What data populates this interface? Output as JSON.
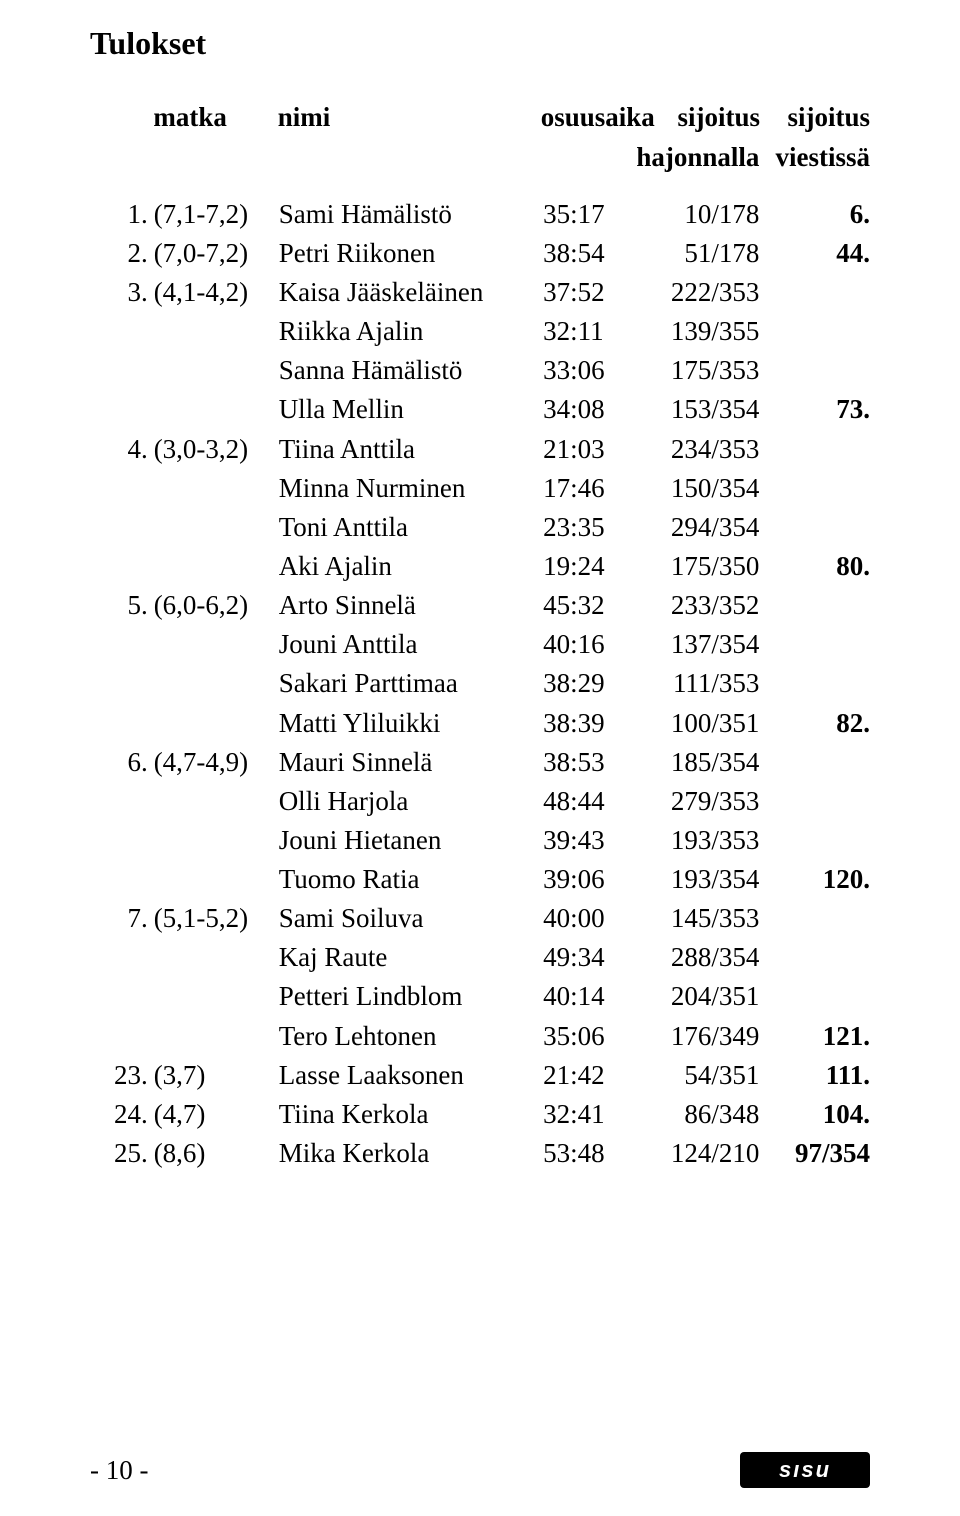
{
  "title": "Tulokset",
  "headers": {
    "matka": "matka",
    "nimi": "nimi",
    "osuusaika": "osuusaika",
    "sijoitus": "sijoitus",
    "hajonnalla": "hajonnalla",
    "sijoitus2": "sijoitus",
    "viestissa": "viestissä"
  },
  "rows": [
    {
      "leg": "1.",
      "dist": "(7,1-7,2)",
      "name": "Sami Hämälistö",
      "time": "35:17",
      "place": "10/178",
      "relay": "6."
    },
    {
      "leg": "2.",
      "dist": "(7,0-7,2)",
      "name": "Petri Riikonen",
      "time": "38:54",
      "place": "51/178",
      "relay": "44."
    },
    {
      "leg": "3.",
      "dist": "(4,1-4,2)",
      "name": "Kaisa Jääskeläinen",
      "time": "37:52",
      "place": "222/353",
      "relay": ""
    },
    {
      "leg": "",
      "dist": "",
      "name": "Riikka Ajalin",
      "time": "32:11",
      "place": "139/355",
      "relay": ""
    },
    {
      "leg": "",
      "dist": "",
      "name": "Sanna Hämälistö",
      "time": "33:06",
      "place": "175/353",
      "relay": ""
    },
    {
      "leg": "",
      "dist": "",
      "name": "Ulla Mellin",
      "time": "34:08",
      "place": "153/354",
      "relay": "73."
    },
    {
      "leg": "4.",
      "dist": "(3,0-3,2)",
      "name": "Tiina Anttila",
      "time": "21:03",
      "place": "234/353",
      "relay": ""
    },
    {
      "leg": "",
      "dist": "",
      "name": "Minna Nurminen",
      "time": "17:46",
      "place": "150/354",
      "relay": ""
    },
    {
      "leg": "",
      "dist": "",
      "name": "Toni Anttila",
      "time": "23:35",
      "place": "294/354",
      "relay": ""
    },
    {
      "leg": "",
      "dist": "",
      "name": "Aki Ajalin",
      "time": "19:24",
      "place": "175/350",
      "relay": "80."
    },
    {
      "leg": "5.",
      "dist": "(6,0-6,2)",
      "name": "Arto Sinnelä",
      "time": "45:32",
      "place": "233/352",
      "relay": ""
    },
    {
      "leg": "",
      "dist": "",
      "name": "Jouni Anttila",
      "time": "40:16",
      "place": "137/354",
      "relay": ""
    },
    {
      "leg": "",
      "dist": "",
      "name": "Sakari Parttimaa",
      "time": "38:29",
      "place": "111/353",
      "relay": ""
    },
    {
      "leg": "",
      "dist": "",
      "name": "Matti Yliluikki",
      "time": "38:39",
      "place": "100/351",
      "relay": "82."
    },
    {
      "leg": "6.",
      "dist": "(4,7-4,9)",
      "name": "Mauri Sinnelä",
      "time": "38:53",
      "place": "185/354",
      "relay": ""
    },
    {
      "leg": "",
      "dist": "",
      "name": "Olli Harjola",
      "time": "48:44",
      "place": "279/353",
      "relay": ""
    },
    {
      "leg": "",
      "dist": "",
      "name": "Jouni Hietanen",
      "time": "39:43",
      "place": "193/353",
      "relay": ""
    },
    {
      "leg": "",
      "dist": "",
      "name": "Tuomo Ratia",
      "time": "39:06",
      "place": "193/354",
      "relay": "120."
    },
    {
      "leg": "7.",
      "dist": "(5,1-5,2)",
      "name": "Sami Soiluva",
      "time": "40:00",
      "place": "145/353",
      "relay": ""
    },
    {
      "leg": "",
      "dist": "",
      "name": "Kaj Raute",
      "time": "49:34",
      "place": "288/354",
      "relay": ""
    },
    {
      "leg": "",
      "dist": "",
      "name": "Petteri Lindblom",
      "time": "40:14",
      "place": "204/351",
      "relay": ""
    },
    {
      "leg": "",
      "dist": "",
      "name": "Tero Lehtonen",
      "time": "35:06",
      "place": "176/349",
      "relay": "121."
    },
    {
      "leg": "23.",
      "dist": "(3,7)",
      "name": "Lasse Laaksonen",
      "time": "21:42",
      "place": "54/351",
      "relay": "111."
    },
    {
      "leg": "24.",
      "dist": "(4,7)",
      "name": "Tiina Kerkola",
      "time": "32:41",
      "place": "86/348",
      "relay": "104."
    },
    {
      "leg": "25.",
      "dist": "(8,6)",
      "name": "Mika Kerkola",
      "time": "53:48",
      "place": "124/210",
      "relay": "97/354"
    }
  ],
  "footer": {
    "page": "- 10 -",
    "logo": "sısu"
  }
}
